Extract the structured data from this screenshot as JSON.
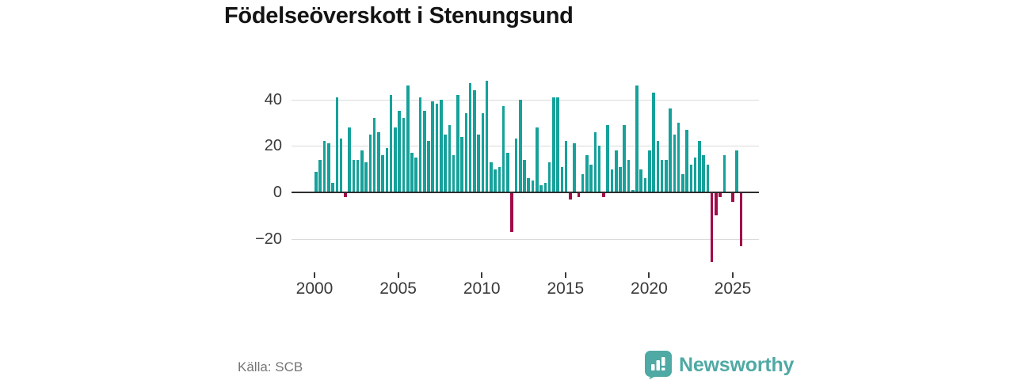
{
  "title": "Födelseöverskott i Stenungsund",
  "source": "Källa: SCB",
  "brand": {
    "name": "Newsworthy",
    "color": "#4fa9a4"
  },
  "colors": {
    "positive_bar": "#16a19a",
    "negative_bar": "#a10c49",
    "gridline": "#dbdbdb",
    "zero_axis": "#2e2e2e",
    "axis_text": "#3a3a3a",
    "title_text": "#141414",
    "source_text": "#757575"
  },
  "chart_data": {
    "type": "bar",
    "title": "Födelseöverskott i Stenungsund",
    "xlabel": "",
    "ylabel": "",
    "frequency": "quarterly",
    "start_period": "2000-Q1",
    "end_period": "2025-Q3",
    "x_ticks": [
      2000,
      2005,
      2010,
      2015,
      2020,
      2025
    ],
    "x_tick_labels": [
      "2000",
      "2005",
      "2010",
      "2015",
      "2020",
      "2025"
    ],
    "y_ticks": [
      40,
      20,
      0,
      -20
    ],
    "y_tick_labels": [
      "40",
      "20",
      "0",
      "−20"
    ],
    "ylim": [
      -33,
      52
    ],
    "grid": true,
    "legend": false,
    "values": [
      9,
      14,
      22,
      21,
      4,
      41,
      23,
      -2,
      28,
      14,
      14,
      18,
      13,
      25,
      32,
      26,
      16,
      19,
      42,
      28,
      35,
      32,
      46,
      17,
      15,
      41,
      35,
      22,
      39,
      38,
      40,
      25,
      29,
      16,
      42,
      24,
      34,
      47,
      44,
      25,
      34,
      48,
      13,
      10,
      11,
      37,
      17,
      -17,
      23,
      40,
      14,
      6,
      5,
      28,
      3,
      4,
      13,
      41,
      41,
      11,
      22,
      -3,
      21,
      -2,
      8,
      16,
      12,
      26,
      20,
      -2,
      29,
      10,
      18,
      11,
      29,
      14,
      1,
      46,
      10,
      6,
      18,
      43,
      22,
      14,
      14,
      36,
      25,
      30,
      8,
      27,
      12,
      15,
      22,
      16,
      12,
      -30,
      -10,
      -2,
      16,
      0,
      -4,
      18,
      -23
    ]
  }
}
